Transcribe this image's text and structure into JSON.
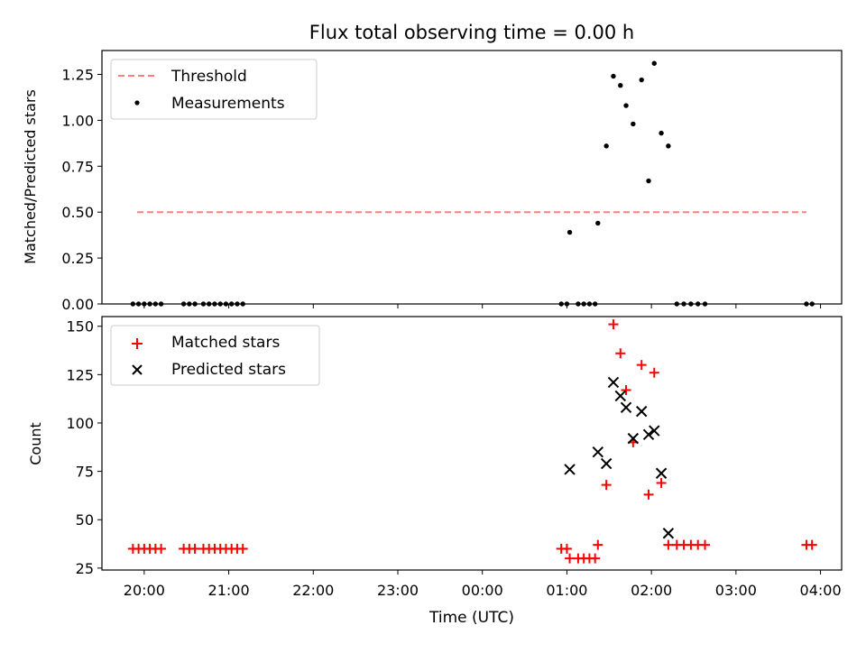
{
  "colors": {
    "matched": "#ff0000",
    "predicted": "#000000",
    "threshold": "#ff7f7f",
    "measurement": "#000000"
  },
  "chart_data": [
    {
      "type": "scatter",
      "title": "Flux total observing time = 0.00 h",
      "xlabel": "",
      "ylabel": "Matched/Predicted stars",
      "xlim": [
        "19:30",
        "04:15"
      ],
      "ylim": [
        0,
        1.38
      ],
      "xticks": [
        "20:00",
        "21:00",
        "22:00",
        "23:00",
        "00:00",
        "01:00",
        "02:00",
        "03:00",
        "04:00"
      ],
      "yticks": [
        "0.00",
        "0.25",
        "0.50",
        "0.75",
        "1.00",
        "1.25"
      ],
      "legend_position": "upper-left",
      "series": [
        {
          "name": "Threshold",
          "style": "dashed-line",
          "x": [
            "19:55",
            "03:50"
          ],
          "y": [
            0.5,
            0.5
          ]
        },
        {
          "name": "Measurements",
          "style": "dot",
          "x": [
            "19:52",
            "19:56",
            "20:00",
            "20:04",
            "20:08",
            "20:12",
            "20:28",
            "20:32",
            "20:36",
            "20:42",
            "20:46",
            "20:50",
            "20:54",
            "20:58",
            "21:02",
            "21:06",
            "21:10",
            "00:56",
            "01:00",
            "01:02",
            "01:08",
            "01:12",
            "01:16",
            "01:20",
            "01:22",
            "01:28",
            "01:33",
            "01:38",
            "01:42",
            "01:47",
            "01:53",
            "01:58",
            "02:02",
            "02:07",
            "02:12",
            "02:18",
            "02:23",
            "02:28",
            "02:33",
            "02:38",
            "03:50",
            "03:54"
          ],
          "y": [
            0,
            0,
            0,
            0,
            0,
            0,
            0,
            0,
            0,
            0,
            0,
            0,
            0,
            0,
            0,
            0,
            0,
            0,
            0,
            0.39,
            0,
            0,
            0,
            0,
            0.44,
            0.86,
            1.24,
            1.19,
            1.08,
            0.98,
            1.22,
            0.67,
            1.31,
            0.93,
            0.86,
            0,
            0,
            0,
            0,
            0,
            0,
            0
          ]
        }
      ]
    },
    {
      "type": "scatter",
      "title": "",
      "xlabel": "Time (UTC)",
      "ylabel": "Count",
      "xlim": [
        "19:30",
        "04:15"
      ],
      "ylim": [
        24,
        155
      ],
      "xticks": [
        "20:00",
        "21:00",
        "22:00",
        "23:00",
        "00:00",
        "01:00",
        "02:00",
        "03:00",
        "04:00"
      ],
      "yticks": [
        "25",
        "50",
        "75",
        "100",
        "125",
        "150"
      ],
      "legend_position": "upper-left",
      "series": [
        {
          "name": "Matched stars",
          "style": "plus",
          "x": [
            "19:52",
            "19:56",
            "20:00",
            "20:04",
            "20:08",
            "20:12",
            "20:28",
            "20:32",
            "20:36",
            "20:42",
            "20:46",
            "20:50",
            "20:54",
            "20:58",
            "21:02",
            "21:06",
            "21:10",
            "00:56",
            "01:00",
            "01:02",
            "01:08",
            "01:12",
            "01:16",
            "01:20",
            "01:22",
            "01:28",
            "01:33",
            "01:38",
            "01:42",
            "01:47",
            "01:53",
            "01:58",
            "02:02",
            "02:07",
            "02:12",
            "02:18",
            "02:23",
            "02:28",
            "02:33",
            "02:38",
            "03:50",
            "03:54"
          ],
          "y": [
            35,
            35,
            35,
            35,
            35,
            35,
            35,
            35,
            35,
            35,
            35,
            35,
            35,
            35,
            35,
            35,
            35,
            35,
            35,
            30,
            30,
            30,
            30,
            30,
            37,
            68,
            151,
            136,
            117,
            90,
            130,
            63,
            126,
            69,
            37,
            37,
            37,
            37,
            37,
            37,
            37,
            37
          ]
        },
        {
          "name": "Predicted stars",
          "style": "x",
          "x": [
            "01:02",
            "01:22",
            "01:28",
            "01:33",
            "01:38",
            "01:42",
            "01:47",
            "01:53",
            "01:58",
            "02:02",
            "02:07",
            "02:12"
          ],
          "y": [
            76,
            85,
            79,
            121,
            114,
            108,
            92,
            106,
            94,
            96,
            74,
            43
          ]
        }
      ]
    }
  ]
}
